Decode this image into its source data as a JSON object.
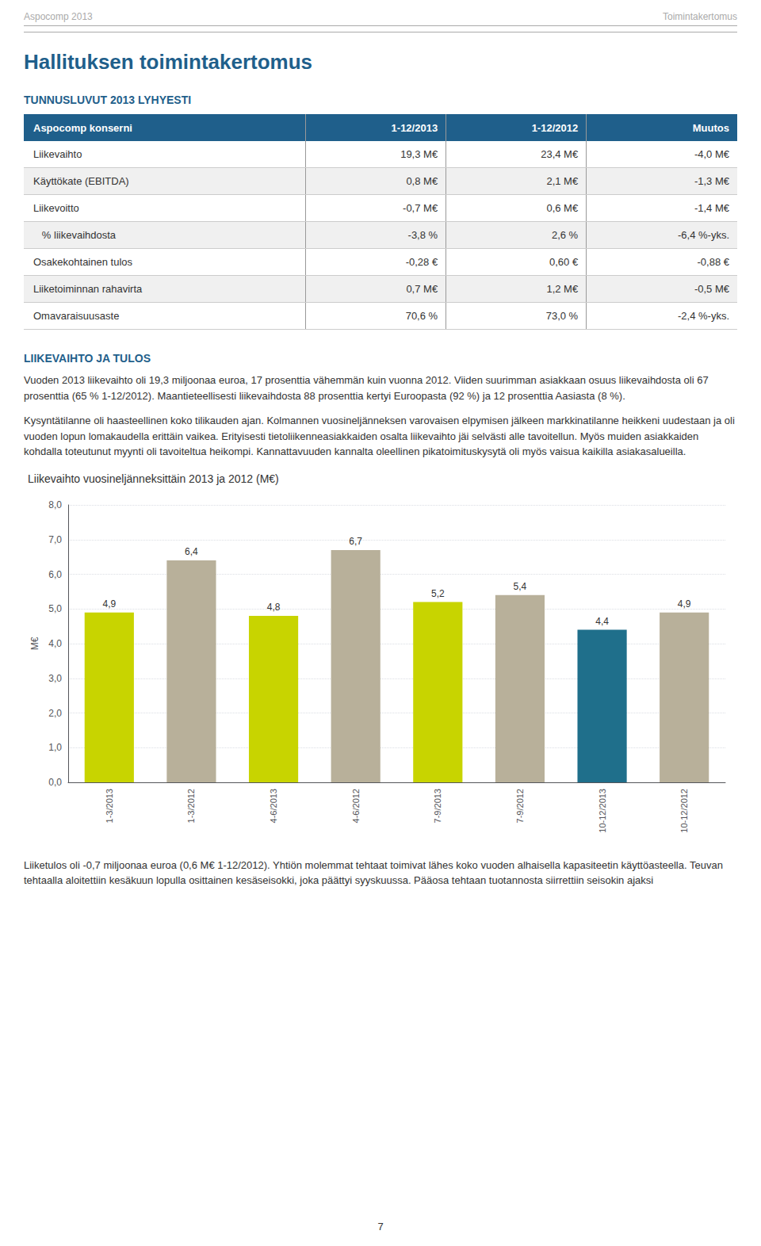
{
  "chart_data": {
    "type": "bar",
    "title": "Liikevaihto vuosineljänneksittäin 2013 ja 2012 (M€)",
    "ylabel": "M€",
    "categories": [
      "1-3/2013",
      "1-3/2012",
      "4-6/2013",
      "4-6/2012",
      "7-9/2013",
      "7-9/2012",
      "10-12/2013",
      "10-12/2012"
    ],
    "values": [
      4.9,
      6.4,
      4.8,
      6.7,
      5.2,
      5.4,
      4.4,
      4.9
    ],
    "value_labels": [
      "4,9",
      "6,4",
      "4,8",
      "6,7",
      "5,2",
      "5,4",
      "4,4",
      "4,9"
    ],
    "colors": [
      "#c8d400",
      "#b8b09a",
      "#c8d400",
      "#b8b09a",
      "#c8d400",
      "#b8b09a",
      "#1f6f8b",
      "#b8b09a"
    ],
    "ylim": [
      0.0,
      8.0
    ],
    "yticks": [
      {
        "value": 0.0,
        "label": "0,0"
      },
      {
        "value": 1.0,
        "label": "1,0"
      },
      {
        "value": 2.0,
        "label": "2,0"
      },
      {
        "value": 3.0,
        "label": "3,0"
      },
      {
        "value": 4.0,
        "label": "4,0"
      },
      {
        "value": 5.0,
        "label": "5,0"
      },
      {
        "value": 6.0,
        "label": "6,0"
      },
      {
        "value": 7.0,
        "label": "7,0"
      },
      {
        "value": 8.0,
        "label": "8,0"
      }
    ],
    "grid": true,
    "data_labels": true,
    "annotations": [
      "Aspocomp 2013",
      "Toimintakertomus",
      "Hallituksen toimintakertomus",
      "TUNNUSLUVUT 2013 LYHYESTI",
      "LIIKEVAIHTO JA TULOS",
      "Vuoden 2013 liikevaihto oli 19,3 miljoonaa euroa, 17 prosenttia vähemmän kuin vuonna 2012. Viiden suurimman asiakkaan osuus liikevaihdosta oli 67 prosenttia (65 % 1-12/2012). Maantieteellisesti liikevaihdosta 88 prosenttia kertyi Euroopasta (92 %) ja 12 prosenttia Aasiasta (8 %).",
      "Kysyntätilanne oli haasteellinen koko tilikauden ajan. Kolmannen vuosineljänneksen varovaisen elpymisen jälkeen markkinatilanne heikkeni uudestaan ja oli vuoden lopun lomakaudella erittäin vaikea. Erityisesti tietoliikenneasiakkaiden osalta liikevaihto jäi selvästi alle tavoitellun. Myös muiden asiakkaiden kohdalla toteutunut myynti oli tavoiteltua heikompi. Kannattavuuden kannalta oleellinen pikatoimituskysytä oli myös vaisua kaikilla asiakasalueilla.",
      "Liiketulos oli -0,7 miljoonaa euroa (0,6 M€ 1-12/2012). Yhtiön molemmat tehtaat toimivat lähes koko vuoden alhaisella kapasiteetin käyttöasteella. Teuvan tehtaalla aloitettiin kesäkuun lopulla osittainen kesäseisokki, joka päättyi syyskuussa. Pääosa tehtaan tuotannosta siirrettiin seisokin ajaksi",
      "7"
    ],
    "table": {
      "header": [
        "Aspocomp konserni",
        "1-12/2013",
        "1-12/2012",
        "Muutos"
      ],
      "rows": [
        [
          "Liikevaihto",
          "19,3 M€",
          "23,4 M€",
          "-4,0 M€"
        ],
        [
          "Käyttökate (EBITDA)",
          "0,8 M€",
          "2,1 M€",
          "-1,3 M€"
        ],
        [
          "Liikevoitto",
          "-0,7 M€",
          "0,6 M€",
          "-1,4 M€"
        ],
        [
          "   % liikevaihdosta",
          "-3,8 %",
          "2,6 %",
          "-6,4 %-yks."
        ],
        [
          "Osakekohtainen tulos",
          "-0,28 €",
          "0,60 €",
          "-0,88 €"
        ],
        [
          "Liiketoiminnan rahavirta",
          "0,7 M€",
          "1,2 M€",
          "-0,5 M€"
        ],
        [
          "Omavaraisuusaste",
          "70,6 %",
          "73,0 %",
          "-2,4 %-yks."
        ]
      ]
    }
  }
}
